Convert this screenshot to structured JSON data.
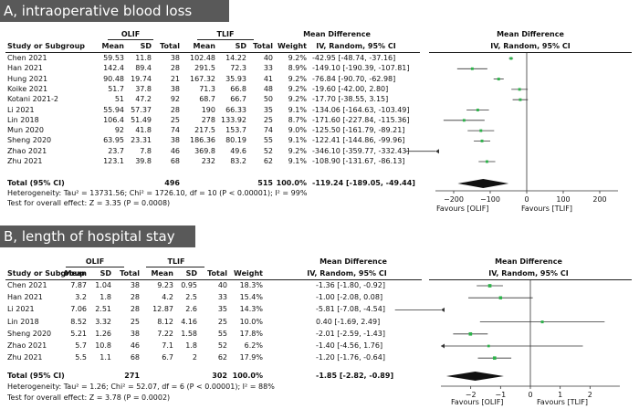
{
  "panels": [
    {
      "title": "A, intraoperative blood loss",
      "group1": "OLIF",
      "group2": "TLIF",
      "columns": {
        "study": "Study or Subgroup",
        "mean": "Mean",
        "sd": "SD",
        "total": "Total",
        "weight": "Weight",
        "md_title": "Mean Difference",
        "md_sub": "IV, Random, 95% CI"
      },
      "studies": [
        {
          "name": "Chen 2021",
          "m1": "59.53",
          "sd1": "11.8",
          "n1": "38",
          "m2": "102.48",
          "sd2": "14.22",
          "n2": "40",
          "weight": "9.2%",
          "ci": "-42.95 [-48.74, -37.16]"
        },
        {
          "name": "Han 2021",
          "m1": "142.4",
          "sd1": "89.4",
          "n1": "28",
          "m2": "291.5",
          "sd2": "72.3",
          "n2": "33",
          "weight": "8.9%",
          "ci": "-149.10 [-190.39, -107.81]"
        },
        {
          "name": "Hung 2021",
          "m1": "90.48",
          "sd1": "19.74",
          "n1": "21",
          "m2": "167.32",
          "sd2": "35.93",
          "n2": "41",
          "weight": "9.2%",
          "ci": "-76.84 [-90.70, -62.98]"
        },
        {
          "name": "Koike 2021",
          "m1": "51.7",
          "sd1": "37.8",
          "n1": "38",
          "m2": "71.3",
          "sd2": "66.8",
          "n2": "48",
          "weight": "9.2%",
          "ci": "-19.60 [-42.00, 2.80]"
        },
        {
          "name": "Kotani 2021-2",
          "m1": "51",
          "sd1": "47.2",
          "n1": "92",
          "m2": "68.7",
          "sd2": "66.7",
          "n2": "50",
          "weight": "9.2%",
          "ci": "-17.70 [-38.55, 3.15]"
        },
        {
          "name": "Li 2021",
          "m1": "55.94",
          "sd1": "57.37",
          "n1": "28",
          "m2": "190",
          "sd2": "66.33",
          "n2": "35",
          "weight": "9.1%",
          "ci": "-134.06 [-164.63, -103.49]"
        },
        {
          "name": "Lin 2018",
          "m1": "106.4",
          "sd1": "51.49",
          "n1": "25",
          "m2": "278",
          "sd2": "133.92",
          "n2": "25",
          "weight": "8.7%",
          "ci": "-171.60 [-227.84, -115.36]"
        },
        {
          "name": "Mun 2020",
          "m1": "92",
          "sd1": "41.8",
          "n1": "74",
          "m2": "217.5",
          "sd2": "153.7",
          "n2": "74",
          "weight": "9.0%",
          "ci": "-125.50 [-161.79, -89.21]"
        },
        {
          "name": "Sheng 2020",
          "m1": "63.95",
          "sd1": "23.31",
          "n1": "38",
          "m2": "186.36",
          "sd2": "80.19",
          "n2": "55",
          "weight": "9.1%",
          "ci": "-122.41 [-144.86, -99.96]"
        },
        {
          "name": "Zhao 2021",
          "m1": "23.7",
          "sd1": "7.8",
          "n1": "46",
          "m2": "369.8",
          "sd2": "49.6",
          "n2": "52",
          "weight": "9.2%",
          "ci": "-346.10 [-359.77, -332.43]"
        },
        {
          "name": "Zhu 2021",
          "m1": "123.1",
          "sd1": "39.8",
          "n1": "68",
          "m2": "232",
          "sd2": "83.2",
          "n2": "62",
          "weight": "9.1%",
          "ci": "-108.90 [-131.67, -86.13]"
        }
      ],
      "total": {
        "label": "Total (95% CI)",
        "n1": "496",
        "n2": "515",
        "weight": "100.0%",
        "ci": "-119.24 [-189.05, -49.44]"
      },
      "heterogeneity": "Heterogeneity: Tau² = 13731.56; Chi² = 1726.10, df = 10 (P < 0.00001); I² = 99%",
      "overall": "Test for overall effect: Z = 3.35 (P = 0.0008)",
      "favours_left": "Favours [OLIF]",
      "favours_right": "Favours [TLIF]"
    },
    {
      "title": "B, length of hospital stay",
      "group1": "OLIF",
      "group2": "TLIF",
      "columns": {
        "study": "Study or Subgroup",
        "mean": "Mean",
        "sd": "SD",
        "total": "Total",
        "weight": "Weight",
        "md_title": "Mean Difference",
        "md_sub": "IV, Random, 95% CI"
      },
      "studies": [
        {
          "name": "Chen 2021",
          "m1": "7.87",
          "sd1": "1.04",
          "n1": "38",
          "m2": "9.23",
          "sd2": "0.95",
          "n2": "40",
          "weight": "18.3%",
          "ci": "-1.36 [-1.80, -0.92]"
        },
        {
          "name": "Han 2021",
          "m1": "3.2",
          "sd1": "1.8",
          "n1": "28",
          "m2": "4.2",
          "sd2": "2.5",
          "n2": "33",
          "weight": "15.4%",
          "ci": "-1.00 [-2.08, 0.08]"
        },
        {
          "name": "Li 2021",
          "m1": "7.06",
          "sd1": "2.51",
          "n1": "28",
          "m2": "12.87",
          "sd2": "2.6",
          "n2": "35",
          "weight": "14.3%",
          "ci": "-5.81 [-7.08, -4.54]"
        },
        {
          "name": "Lin 2018",
          "m1": "8.52",
          "sd1": "3.32",
          "n1": "25",
          "m2": "8.12",
          "sd2": "4.16",
          "n2": "25",
          "weight": "10.0%",
          "ci": "0.40 [-1.69, 2.49]"
        },
        {
          "name": "Sheng 2020",
          "m1": "5.21",
          "sd1": "1.26",
          "n1": "38",
          "m2": "7.22",
          "sd2": "1.58",
          "n2": "55",
          "weight": "17.8%",
          "ci": "-2.01 [-2.59, -1.43]"
        },
        {
          "name": "Zhao 2021",
          "m1": "5.7",
          "sd1": "10.8",
          "n1": "46",
          "m2": "7.1",
          "sd2": "1.8",
          "n2": "52",
          "weight": "6.2%",
          "ci": "-1.40 [-4.56, 1.76]"
        },
        {
          "name": "Zhu 2021",
          "m1": "5.5",
          "sd1": "1.1",
          "n1": "68",
          "m2": "6.7",
          "sd2": "2",
          "n2": "62",
          "weight": "17.9%",
          "ci": "-1.20 [-1.76, -0.64]"
        }
      ],
      "total": {
        "label": "Total (95% CI)",
        "n1": "271",
        "n2": "302",
        "weight": "100.0%",
        "ci": "-1.85 [-2.82, -0.89]"
      },
      "heterogeneity": "Heterogeneity: Tau² = 1.26; Chi² = 52.07, df = 6 (P < 0.00001); I² = 88%",
      "overall": "Test for overall effect: Z = 3.78 (P = 0.0002)",
      "favours_left": "Favours [OLIF]",
      "favours_right": "Favours [TLIF]"
    }
  ],
  "chart_data": [
    {
      "type": "forest",
      "title": "A, intraoperative blood loss",
      "xlabel": "Mean Difference (IV, Random, 95% CI)",
      "xlim": [
        -250,
        250
      ],
      "xticks": [
        -200,
        -100,
        0,
        100,
        200
      ],
      "xticklabels": [
        "−200",
        "−100",
        "0",
        "100",
        "200"
      ],
      "series": [
        {
          "label": "Chen 2021",
          "md": -42.95,
          "lo": -48.74,
          "hi": -37.16,
          "weight": 9.2
        },
        {
          "label": "Han 2021",
          "md": -149.1,
          "lo": -190.39,
          "hi": -107.81,
          "weight": 8.9
        },
        {
          "label": "Hung 2021",
          "md": -76.84,
          "lo": -90.7,
          "hi": -62.98,
          "weight": 9.2
        },
        {
          "label": "Koike 2021",
          "md": -19.6,
          "lo": -42.0,
          "hi": 2.8,
          "weight": 9.2
        },
        {
          "label": "Kotani 2021-2",
          "md": -17.7,
          "lo": -38.55,
          "hi": 3.15,
          "weight": 9.2
        },
        {
          "label": "Li 2021",
          "md": -134.06,
          "lo": -164.63,
          "hi": -103.49,
          "weight": 9.1
        },
        {
          "label": "Lin 2018",
          "md": -171.6,
          "lo": -227.84,
          "hi": -115.36,
          "weight": 8.7
        },
        {
          "label": "Mun 2020",
          "md": -125.5,
          "lo": -161.79,
          "hi": -89.21,
          "weight": 9.0
        },
        {
          "label": "Sheng 2020",
          "md": -122.41,
          "lo": -144.86,
          "hi": -99.96,
          "weight": 9.1
        },
        {
          "label": "Zhao 2021",
          "md": -346.1,
          "lo": -359.77,
          "hi": -332.43,
          "weight": 9.2
        },
        {
          "label": "Zhu 2021",
          "md": -108.9,
          "lo": -131.67,
          "hi": -86.13,
          "weight": 9.1
        }
      ],
      "pooled": {
        "md": -119.24,
        "lo": -189.05,
        "hi": -49.44
      },
      "left_label": "Favours [OLIF]",
      "right_label": "Favours [TLIF]"
    },
    {
      "type": "forest",
      "title": "B, length of hospital stay",
      "xlabel": "Mean Difference (IV, Random, 95% CI)",
      "xlim": [
        -3,
        3
      ],
      "xticks": [
        -2,
        -1,
        0,
        1,
        2
      ],
      "xticklabels": [
        "−2",
        "−1",
        "0",
        "1",
        "2"
      ],
      "series": [
        {
          "label": "Chen 2021",
          "md": -1.36,
          "lo": -1.8,
          "hi": -0.92,
          "weight": 18.3
        },
        {
          "label": "Han 2021",
          "md": -1.0,
          "lo": -2.08,
          "hi": 0.08,
          "weight": 15.4
        },
        {
          "label": "Li 2021",
          "md": -5.81,
          "lo": -7.08,
          "hi": -4.54,
          "weight": 14.3
        },
        {
          "label": "Lin 2018",
          "md": 0.4,
          "lo": -1.69,
          "hi": 2.49,
          "weight": 10.0
        },
        {
          "label": "Sheng 2020",
          "md": -2.01,
          "lo": -2.59,
          "hi": -1.43,
          "weight": 17.8
        },
        {
          "label": "Zhao 2021",
          "md": -1.4,
          "lo": -4.56,
          "hi": 1.76,
          "weight": 6.2
        },
        {
          "label": "Zhu 2021",
          "md": -1.2,
          "lo": -1.76,
          "hi": -0.64,
          "weight": 17.9
        }
      ],
      "pooled": {
        "md": -1.85,
        "lo": -2.82,
        "hi": -0.89
      },
      "left_label": "Favours [OLIF]",
      "right_label": "Favours [TLIF]"
    }
  ]
}
